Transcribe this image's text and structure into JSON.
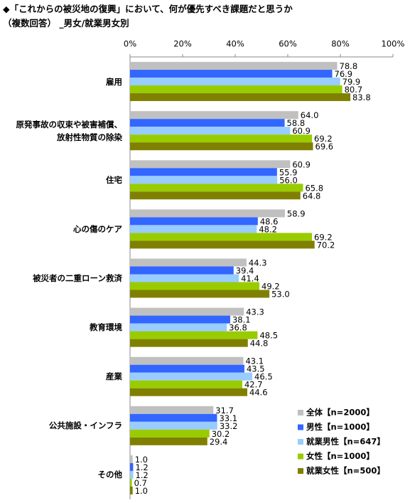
{
  "chart_data": {
    "type": "hbar",
    "title": "◆「これからの被災地の復興」において、何が優先すべき課題だと思うか",
    "subtitle": "（複数回答） _男女/就業男女別",
    "categories": [
      "雇用",
      "原発事故の収束や被害補償、\n放射性物質の除染",
      "住宅",
      "心の傷のケア",
      "被災者の二重ローン救済",
      "教育環境",
      "産業",
      "公共施設・インフラ",
      "その他"
    ],
    "series": [
      {
        "name": "全体【n=2000】",
        "color": "#c0c0c0",
        "values": [
          78.8,
          64.0,
          60.9,
          58.9,
          44.3,
          43.3,
          43.1,
          31.7,
          1.0
        ],
        "value_labels": [
          "78.8",
          "64.0",
          "60.9",
          "58.9",
          "44.3",
          "43.3",
          "43.1",
          "31.7",
          "1.0"
        ]
      },
      {
        "name": "男性【n=1000】",
        "color": "#3366ff",
        "values": [
          76.9,
          58.8,
          55.9,
          48.6,
          39.4,
          38.1,
          43.5,
          33.1,
          1.2
        ],
        "value_labels": [
          "76.9",
          "58.8",
          "55.9",
          "48.6",
          "39.4",
          "38.1",
          "43.5",
          "33.1",
          "1.2"
        ]
      },
      {
        "name": "就業男性【n=647】",
        "color": "#99ccff",
        "values": [
          79.9,
          60.9,
          56.0,
          48.2,
          41.4,
          36.8,
          46.5,
          33.2,
          1.2
        ],
        "value_labels": [
          "79.9",
          "60.9",
          "56.0",
          "48.2",
          "41.4",
          "36.8",
          "46.5",
          "33.2",
          "1.2"
        ]
      },
      {
        "name": "女性【n=1000】",
        "color": "#99cc00",
        "values": [
          80.7,
          69.2,
          65.8,
          69.2,
          49.2,
          48.5,
          42.7,
          30.2,
          0.7
        ],
        "value_labels": [
          "80.7",
          "69.2",
          "65.8",
          "69.2",
          "49.2",
          "48.5",
          "42.7",
          "30.2",
          "0.7"
        ]
      },
      {
        "name": "就業女性【n=500】",
        "color": "#808000",
        "values": [
          83.8,
          69.6,
          64.8,
          70.2,
          53.0,
          44.8,
          44.6,
          29.4,
          1.0
        ],
        "value_labels": [
          "83.8",
          "69.6",
          "64.8",
          "70.2",
          "53.0",
          "44.8",
          "44.6",
          "29.4",
          "1.0"
        ]
      }
    ],
    "xlim": [
      0,
      100
    ],
    "xticks": [
      {
        "value": 0,
        "label": "0%"
      },
      {
        "value": 20,
        "label": "20%"
      },
      {
        "value": 40,
        "label": "40%"
      },
      {
        "value": 60,
        "label": "60%"
      },
      {
        "value": 80,
        "label": "80%"
      },
      {
        "value": 100,
        "label": "100%"
      }
    ],
    "grid": false,
    "legend": "lower right"
  }
}
